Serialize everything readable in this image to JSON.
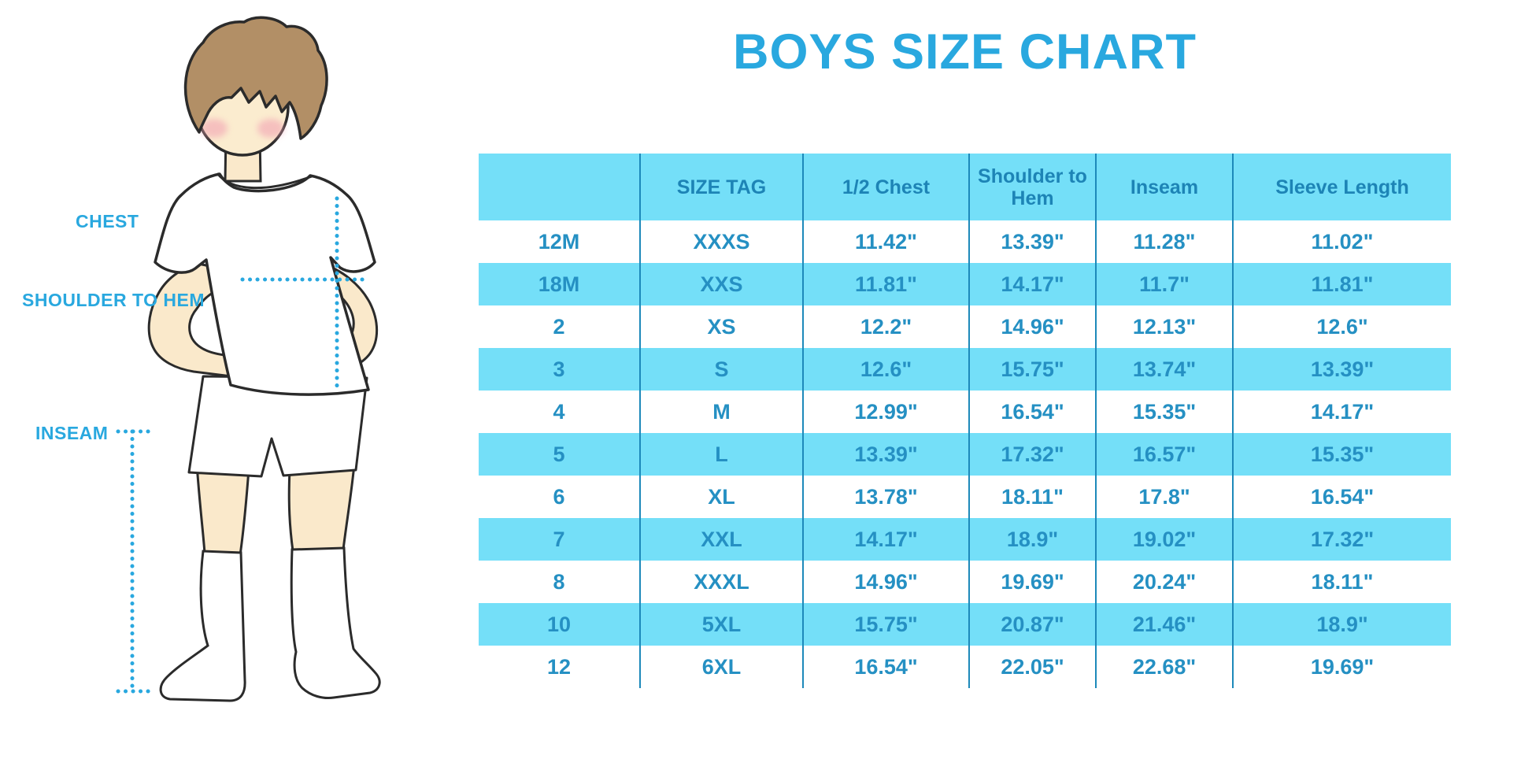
{
  "title": "BOYS SIZE CHART",
  "figure": {
    "labels": {
      "chest": "CHEST",
      "shoulder_to_hem": "SHOULDER TO HEM",
      "inseam": "INSEAM"
    }
  },
  "colors": {
    "accent_blue": "#29a8df",
    "table_fill_light_blue": "#74dff8",
    "divider_blue": "#1d89ba",
    "table_text_blue": "#2590c3",
    "skin": "#fae9cb",
    "hair_brown": "#b28f66",
    "blush_pink": "#f2a3b3"
  },
  "chart_data": {
    "type": "table",
    "title": "BOYS SIZE CHART",
    "columns": [
      "",
      "SIZE TAG",
      "1/2 Chest",
      "Shoulder to Hem",
      "Inseam",
      "Sleeve Length"
    ],
    "rows": [
      [
        "12M",
        "XXXS",
        "11.42\"",
        "13.39\"",
        "11.28\"",
        "11.02\""
      ],
      [
        "18M",
        "XXS",
        "11.81\"",
        "14.17\"",
        "11.7\"",
        "11.81\""
      ],
      [
        "2",
        "XS",
        "12.2\"",
        "14.96\"",
        "12.13\"",
        "12.6\""
      ],
      [
        "3",
        "S",
        "12.6\"",
        "15.75\"",
        "13.74\"",
        "13.39\""
      ],
      [
        "4",
        "M",
        "12.99\"",
        "16.54\"",
        "15.35\"",
        "14.17\""
      ],
      [
        "5",
        "L",
        "13.39\"",
        "17.32\"",
        "16.57\"",
        "15.35\""
      ],
      [
        "6",
        "XL",
        "13.78\"",
        "18.11\"",
        "17.8\"",
        "16.54\""
      ],
      [
        "7",
        "XXL",
        "14.17\"",
        "18.9\"",
        "19.02\"",
        "17.32\""
      ],
      [
        "8",
        "XXXL",
        "14.96\"",
        "19.69\"",
        "20.24\"",
        "18.11\""
      ],
      [
        "10",
        "5XL",
        "15.75\"",
        "20.87\"",
        "21.46\"",
        "18.9\""
      ],
      [
        "12",
        "6XL",
        "16.54\"",
        "22.05\"",
        "22.68\"",
        "19.69\""
      ]
    ],
    "layout": {
      "striped_rows": "alternating white / light blue starting white",
      "header_fill": "light blue",
      "column_dividers": "vertical dark blue lines"
    }
  }
}
